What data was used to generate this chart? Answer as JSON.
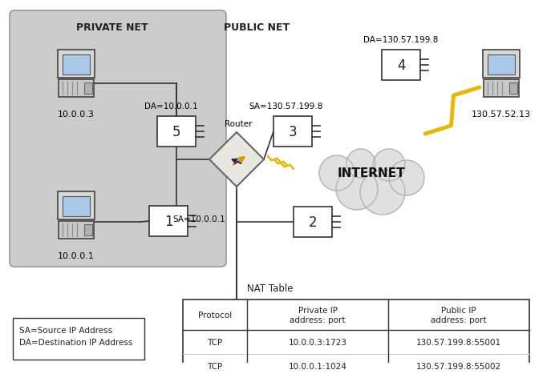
{
  "bg_color": "#ffffff",
  "private_net_bg": "#cccccc",
  "private_net_label": "PRIVATE NET",
  "public_net_label": "PUBLIC NET",
  "internet_label": "INTERNET",
  "nat_table_label": "NAT Table",
  "legend_text": "SA=Source IP Address\nDA=Destination IP Address",
  "ip_10003": "10.0.0.3",
  "ip_10001": "10.0.0.1",
  "ip_remote": "130.57.52.13",
  "da_private": "DA=10.0.0.1",
  "sa_public": "SA=130.57.199.8",
  "da_public": "DA=130.57.199.8",
  "sa_private": "SA=10.0.0.1",
  "router_label": "Router",
  "table_headers": [
    "Protocol",
    "Private IP\naddress: port",
    "Public IP\naddress: port"
  ],
  "table_row1": [
    "TCP",
    "10.0.0.3:1723",
    "130.57.199.8:55001"
  ],
  "table_row2": [
    "TCP",
    "10.0.0.1:1024",
    "130.57.199.8:55002"
  ]
}
